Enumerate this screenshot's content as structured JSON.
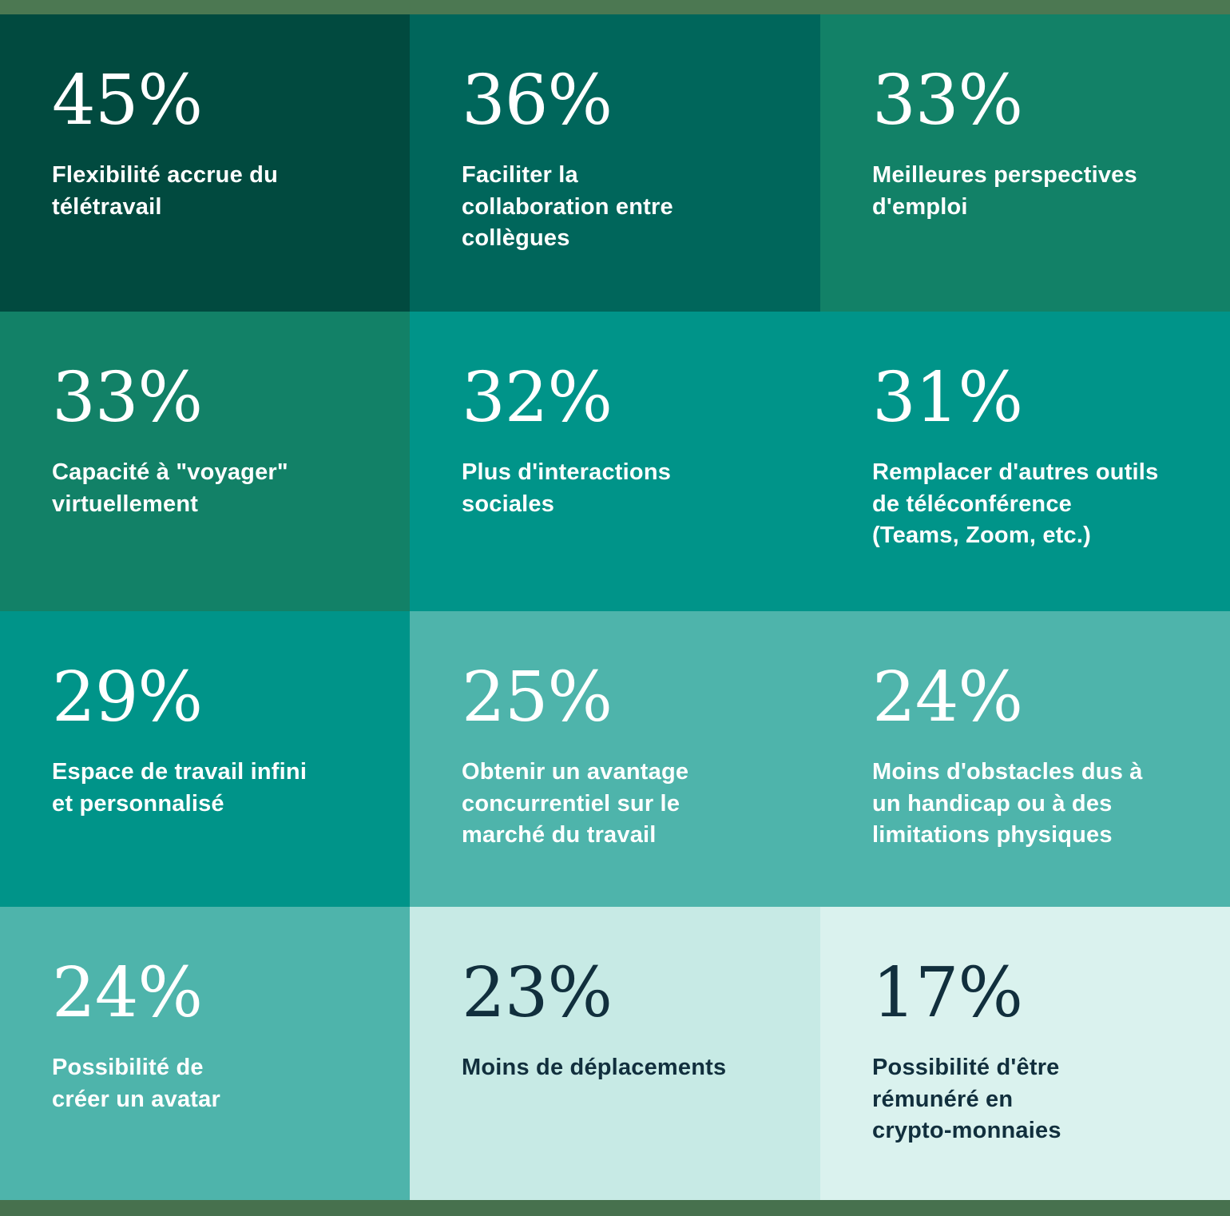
{
  "page": {
    "top_band_color": "#4C7852",
    "bottom_band_color": "#47714E",
    "light_text_color": "#FFFFFF",
    "dark_text_color": "#112F3D"
  },
  "chart_data": {
    "type": "heatmap",
    "unit": "%",
    "layout": {
      "rows": 4,
      "cols": 3,
      "legend": "none",
      "grid": "off"
    },
    "categories": [
      "Flexibilité accrue du télétravail",
      "Faciliter la collaboration entre collègues",
      "Meilleures perspectives d'emploi",
      "Capacité à \"voyager\" virtuellement",
      "Plus d'interactions sociales",
      "Remplacer d'autres outils de téléconférence (Teams, Zoom, etc.)",
      "Espace de travail infini et personnalisé",
      "Obtenir un avantage concurrentiel sur le marché du travail",
      "Moins d'obstacles dus à un handicap ou à des limitations physiques",
      "Possibilité de créer un avatar",
      "Moins de déplacements",
      "Possibilité d'être rémunéré en crypto-monnaies"
    ],
    "values": [
      45,
      36,
      33,
      33,
      32,
      31,
      29,
      25,
      24,
      24,
      23,
      17
    ],
    "tiles": [
      {
        "value": "45%",
        "value_pct": 45,
        "label_lines": [
          "Flexibilité accrue du",
          "télétravail"
        ],
        "bg": "#014A3F",
        "fg": "#FFFFFF"
      },
      {
        "value": "36%",
        "value_pct": 36,
        "label_lines": [
          "Faciliter la",
          "collaboration entre",
          "collègues"
        ],
        "bg": "#00665B",
        "fg": "#FFFFFF"
      },
      {
        "value": "33%",
        "value_pct": 33,
        "label_lines": [
          "Meilleures perspectives",
          "d'emploi"
        ],
        "bg": "#128167",
        "fg": "#FFFFFF"
      },
      {
        "value": "33%",
        "value_pct": 33,
        "label_lines": [
          "Capacité à \"voyager\"",
          "virtuellement"
        ],
        "bg": "#128167",
        "fg": "#FFFFFF"
      },
      {
        "value": "32%",
        "value_pct": 32,
        "label_lines": [
          "Plus d'interactions",
          "sociales"
        ],
        "bg": "#009489",
        "fg": "#FFFFFF"
      },
      {
        "value": "31%",
        "value_pct": 31,
        "label_lines": [
          "Remplacer d'autres outils",
          "de téléconférence",
          "(Teams, Zoom, etc.)"
        ],
        "bg": "#009489",
        "fg": "#FFFFFF"
      },
      {
        "value": "29%",
        "value_pct": 29,
        "label_lines": [
          "Espace de travail infini",
          "et personnalisé"
        ],
        "bg": "#009489",
        "fg": "#FFFFFF"
      },
      {
        "value": "25%",
        "value_pct": 25,
        "label_lines": [
          "Obtenir un avantage",
          "concurrentiel sur le",
          "marché du travail"
        ],
        "bg": "#4EB4AB",
        "fg": "#FFFFFF"
      },
      {
        "value": "24%",
        "value_pct": 24,
        "label_lines": [
          "Moins d'obstacles dus à",
          "un handicap ou à des",
          "limitations physiques"
        ],
        "bg": "#4EB4AB",
        "fg": "#FFFFFF"
      },
      {
        "value": "24%",
        "value_pct": 24,
        "label_lines": [
          "Possibilité de",
          "créer un avatar"
        ],
        "bg": "#4EB4AB",
        "fg": "#FFFFFF"
      },
      {
        "value": "23%",
        "value_pct": 23,
        "label_lines": [
          "Moins de déplacements"
        ],
        "bg": "#C7EAE5",
        "fg": "#112F3D"
      },
      {
        "value": "17%",
        "value_pct": 17,
        "label_lines": [
          "Possibilité d'être",
          "rémunéré en",
          "crypto-monnaies"
        ],
        "bg": "#DAF2EE",
        "fg": "#112F3D"
      }
    ]
  }
}
